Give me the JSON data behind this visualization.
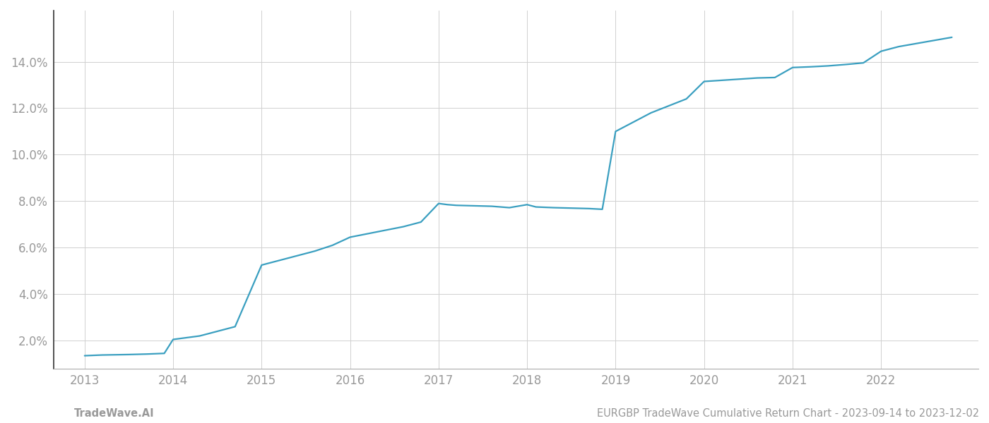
{
  "x_values": [
    2013.0,
    2013.2,
    2013.5,
    2013.7,
    2013.9,
    2014.0,
    2014.1,
    2014.3,
    2014.5,
    2014.7,
    2015.0,
    2015.1,
    2015.2,
    2015.4,
    2015.6,
    2015.8,
    2016.0,
    2016.2,
    2016.4,
    2016.6,
    2016.8,
    2017.0,
    2017.1,
    2017.2,
    2017.4,
    2017.6,
    2017.8,
    2018.0,
    2018.1,
    2018.3,
    2018.5,
    2018.7,
    2018.85,
    2019.0,
    2019.1,
    2019.2,
    2019.4,
    2019.6,
    2019.8,
    2020.0,
    2020.2,
    2020.4,
    2020.6,
    2020.8,
    2021.0,
    2021.2,
    2021.4,
    2021.6,
    2021.8,
    2022.0,
    2022.2,
    2022.5,
    2022.8
  ],
  "y_values": [
    1.35,
    1.38,
    1.4,
    1.42,
    1.45,
    2.05,
    2.1,
    2.2,
    2.4,
    2.6,
    5.25,
    5.35,
    5.45,
    5.65,
    5.85,
    6.1,
    6.45,
    6.6,
    6.75,
    6.9,
    7.1,
    7.9,
    7.85,
    7.82,
    7.8,
    7.78,
    7.72,
    7.85,
    7.75,
    7.72,
    7.7,
    7.68,
    7.65,
    11.0,
    11.2,
    11.4,
    11.8,
    12.1,
    12.4,
    13.15,
    13.2,
    13.25,
    13.3,
    13.32,
    13.75,
    13.78,
    13.82,
    13.88,
    13.95,
    14.45,
    14.65,
    14.85,
    15.05
  ],
  "line_color": "#3a9fc0",
  "line_width": 1.6,
  "background_color": "#ffffff",
  "grid_color": "#d0d0d0",
  "x_ticks": [
    2013,
    2014,
    2015,
    2016,
    2017,
    2018,
    2019,
    2020,
    2021,
    2022
  ],
  "y_ticks": [
    2.0,
    4.0,
    6.0,
    8.0,
    10.0,
    12.0,
    14.0
  ],
  "xlim": [
    2012.65,
    2023.1
  ],
  "ylim": [
    0.8,
    16.2
  ],
  "tick_label_color": "#999999",
  "tick_fontsize": 12,
  "footer_left": "TradeWave.AI",
  "footer_right": "EURGBP TradeWave Cumulative Return Chart - 2023-09-14 to 2023-12-02",
  "footer_fontsize": 10.5,
  "footer_color": "#999999"
}
